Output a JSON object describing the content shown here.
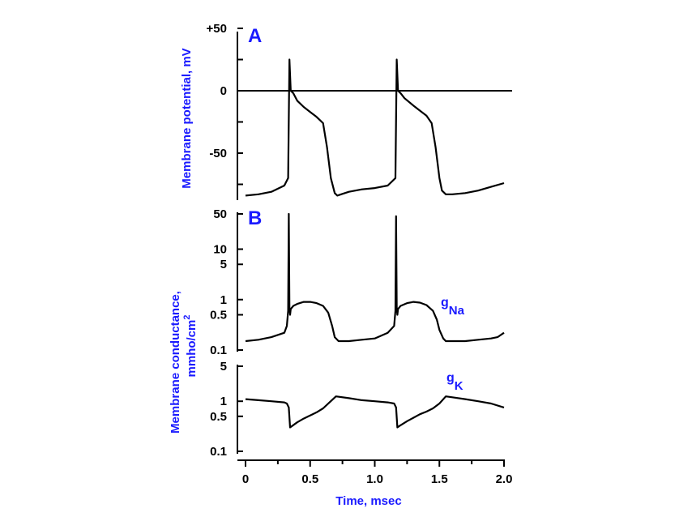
{
  "figure": {
    "panel_a_letter": "A",
    "panel_b_letter": "B",
    "xlabel": "Time, msec",
    "ylabel_a": "Membrane potential, mV",
    "ylabel_b_line1": "Membrane conductance,",
    "ylabel_b_line2": "mmho/cm",
    "ylabel_b_sup": "2",
    "gna_label_g": "g",
    "gna_label_sub": "Na",
    "gk_label_g": "g",
    "gk_label_sub": "K"
  },
  "chart_data": [
    {
      "type": "line",
      "panel": "A",
      "ylabel": "Membrane potential, mV",
      "xlim": [
        0,
        2.0
      ],
      "ylim": [
        -90,
        50
      ],
      "y_ticks": [
        50,
        25,
        0,
        -25,
        -50,
        -75
      ],
      "y_tick_labels": [
        "+50",
        "",
        "0",
        "",
        "-50",
        ""
      ],
      "reference_line_y": 0,
      "series": [
        {
          "x": [
            0,
            0.1,
            0.2,
            0.3,
            0.33,
            0.34,
            0.35,
            0.37,
            0.4,
            0.45,
            0.5,
            0.55,
            0.6,
            0.63,
            0.66,
            0.69,
            0.71,
            0.74,
            0.8,
            0.9,
            1.0,
            1.1,
            1.16,
            1.17,
            1.18,
            1.2,
            1.23,
            1.3,
            1.35,
            1.4,
            1.44,
            1.47,
            1.5,
            1.52,
            1.55,
            1.6,
            1.7,
            1.8,
            1.9,
            2.0
          ],
          "y": [
            -84,
            -83,
            -81,
            -76,
            -70,
            25,
            0,
            -2,
            -8,
            -13,
            -17,
            -21,
            -26,
            -45,
            -70,
            -82,
            -84,
            -83,
            -81,
            -79,
            -78,
            -76,
            -70,
            25,
            0,
            -2,
            -6,
            -12,
            -16,
            -20,
            -26,
            -45,
            -70,
            -80,
            -83,
            -83,
            -82,
            -80,
            -77,
            -74
          ]
        }
      ]
    },
    {
      "type": "line",
      "panel": "B",
      "ylabel": "Membrane conductance, mmho/cm2",
      "series_label": "gNa",
      "log_scale": true,
      "xlim": [
        0,
        2.0
      ],
      "ylim": [
        0.1,
        50
      ],
      "y_ticks": [
        0.1,
        0.5,
        1,
        5,
        10,
        50
      ],
      "y_tick_labels": [
        "0.1",
        "0.5",
        "1",
        "5",
        "10",
        "50"
      ],
      "series": [
        {
          "x": [
            0,
            0.1,
            0.2,
            0.3,
            0.32,
            0.33,
            0.335,
            0.34,
            0.345,
            0.35,
            0.37,
            0.4,
            0.45,
            0.5,
            0.55,
            0.6,
            0.64,
            0.67,
            0.69,
            0.72,
            0.8,
            0.9,
            1.0,
            1.1,
            1.15,
            1.16,
            1.165,
            1.17,
            1.175,
            1.18,
            1.2,
            1.25,
            1.3,
            1.35,
            1.4,
            1.45,
            1.48,
            1.5,
            1.53,
            1.55,
            1.6,
            1.7,
            1.8,
            1.9,
            1.95,
            2.0
          ],
          "y": [
            0.15,
            0.16,
            0.18,
            0.22,
            0.3,
            0.6,
            50,
            0.7,
            0.5,
            0.65,
            0.75,
            0.82,
            0.9,
            0.9,
            0.85,
            0.75,
            0.55,
            0.3,
            0.18,
            0.15,
            0.15,
            0.16,
            0.17,
            0.22,
            0.3,
            0.6,
            45,
            0.7,
            0.5,
            0.65,
            0.75,
            0.85,
            0.9,
            0.87,
            0.78,
            0.6,
            0.4,
            0.25,
            0.17,
            0.15,
            0.15,
            0.15,
            0.16,
            0.17,
            0.18,
            0.22
          ]
        }
      ]
    },
    {
      "type": "line",
      "panel": "B",
      "series_label": "gK",
      "log_scale": true,
      "xlim": [
        0,
        2.0
      ],
      "ylim": [
        0.1,
        5
      ],
      "y_ticks": [
        0.1,
        0.5,
        1,
        5
      ],
      "y_tick_labels": [
        "0.1",
        "0.5",
        "1",
        "5"
      ],
      "series": [
        {
          "x": [
            0,
            0.1,
            0.2,
            0.3,
            0.32,
            0.335,
            0.345,
            0.36,
            0.4,
            0.45,
            0.5,
            0.55,
            0.6,
            0.65,
            0.7,
            0.8,
            0.9,
            1.0,
            1.1,
            1.15,
            1.165,
            1.175,
            1.19,
            1.25,
            1.3,
            1.35,
            1.4,
            1.45,
            1.5,
            1.55,
            1.6,
            1.7,
            1.8,
            1.9,
            2.0
          ],
          "y": [
            1.1,
            1.05,
            1.0,
            0.95,
            0.9,
            0.75,
            0.3,
            0.32,
            0.38,
            0.45,
            0.52,
            0.6,
            0.72,
            0.95,
            1.25,
            1.15,
            1.05,
            1.0,
            0.95,
            0.9,
            0.75,
            0.3,
            0.32,
            0.4,
            0.47,
            0.55,
            0.62,
            0.72,
            0.9,
            1.25,
            1.2,
            1.1,
            1.0,
            0.9,
            0.75
          ]
        }
      ]
    }
  ],
  "x_axis": {
    "ticks": [
      0,
      0.5,
      1.0,
      1.5,
      2.0
    ],
    "tick_labels": [
      "0",
      "0.5",
      "1.0",
      "1.5",
      "2.0"
    ],
    "minor_ticks": [
      0.25,
      0.75,
      1.25,
      1.75
    ]
  }
}
